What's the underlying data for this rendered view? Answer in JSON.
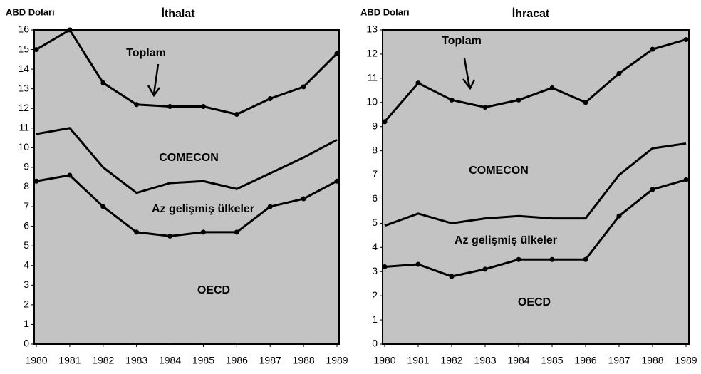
{
  "chart_data": [
    {
      "type": "stacked_line",
      "title": "İthalat",
      "ylabel": "ABD Doları",
      "annotation": "Toplam",
      "categories": [
        "1980",
        "1981",
        "1982",
        "1983",
        "1984",
        "1985",
        "1986",
        "1987",
        "1988",
        "1989"
      ],
      "ylim": [
        0,
        16
      ],
      "yticks": [
        0,
        1,
        2,
        3,
        4,
        5,
        6,
        7,
        8,
        9,
        10,
        11,
        12,
        13,
        14,
        15,
        16
      ],
      "series": [
        {
          "name": "OECD",
          "color": "#000000",
          "markers": true,
          "values": [
            8.3,
            8.6,
            7.0,
            5.7,
            5.5,
            5.7,
            5.7,
            7.0,
            7.4,
            8.3
          ]
        },
        {
          "name": "Az gelişmiş ülkeler",
          "color": "#000000",
          "markers": false,
          "values": [
            2.4,
            2.4,
            2.0,
            2.0,
            2.7,
            2.6,
            2.2,
            1.7,
            2.1,
            2.1
          ]
        },
        {
          "name": "COMECON",
          "color": "#000000",
          "markers": true,
          "values": [
            4.3,
            5.0,
            4.3,
            4.5,
            3.9,
            3.8,
            3.8,
            3.8,
            3.6,
            4.4
          ]
        }
      ]
    },
    {
      "type": "stacked_line",
      "title": "İhracat",
      "ylabel": "ABD Doları",
      "annotation": "Toplam",
      "categories": [
        "1980",
        "1981",
        "1982",
        "1983",
        "1984",
        "1985",
        "1986",
        "1987",
        "1988",
        "1989"
      ],
      "ylim": [
        0,
        13
      ],
      "yticks": [
        0,
        1,
        2,
        3,
        4,
        5,
        6,
        7,
        8,
        9,
        10,
        11,
        12,
        13
      ],
      "series": [
        {
          "name": "OECD",
          "color": "#000000",
          "markers": true,
          "values": [
            3.2,
            3.3,
            2.8,
            3.1,
            3.5,
            3.5,
            3.5,
            5.3,
            6.4,
            6.8
          ]
        },
        {
          "name": "Az gelişmiş ülkeler",
          "color": "#000000",
          "markers": false,
          "values": [
            1.7,
            2.1,
            2.2,
            2.1,
            1.8,
            1.7,
            1.7,
            1.7,
            1.7,
            1.5
          ]
        },
        {
          "name": "COMECON",
          "color": "#000000",
          "markers": true,
          "values": [
            4.3,
            5.4,
            5.1,
            4.6,
            4.8,
            5.4,
            4.8,
            4.2,
            4.1,
            4.3
          ]
        }
      ]
    }
  ]
}
